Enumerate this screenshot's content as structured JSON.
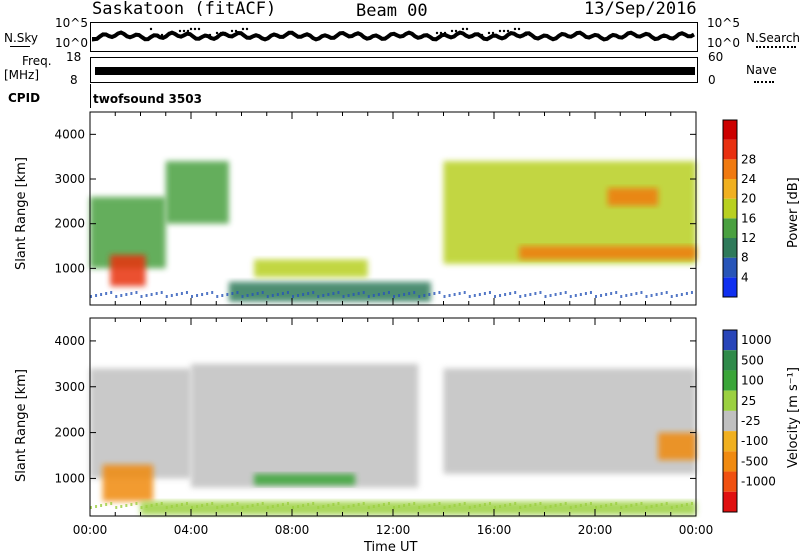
{
  "header": {
    "radar": "Saskatoon (fitACF)",
    "beam": "Beam 00",
    "date": "13/Sep/2016"
  },
  "aux": {
    "nsky_label": "N.Sky",
    "nsky_ticks": [
      "10^5",
      "10^0"
    ],
    "nsearch_label": "N.Search",
    "nsearch_ticks": [
      "10^5",
      "10^0"
    ],
    "freq_label_1": "Freq.",
    "freq_label_2": "[MHz]",
    "freq_ticks": [
      "18",
      "8"
    ],
    "nave_label": "Nave",
    "nave_ticks": [
      "60",
      "0"
    ],
    "cpid_label": "CPID",
    "cpid_value": "twofsound 3503"
  },
  "axes": {
    "xlabel": "Time UT",
    "xticks": [
      "00:00",
      "04:00",
      "08:00",
      "12:00",
      "16:00",
      "20:00",
      "00:00"
    ],
    "ylabel": "Slant Range [km]",
    "yticks": [
      "1000",
      "2000",
      "3000",
      "4000"
    ]
  },
  "colorbars": {
    "power": {
      "label": "Power [dB]",
      "ticks": [
        "4",
        "8",
        "12",
        "16",
        "20",
        "24",
        "28"
      ],
      "colors": [
        "#1030f0",
        "#2855b8",
        "#2f7a5a",
        "#4aa040",
        "#b8d020",
        "#f0b020",
        "#f07a10",
        "#e83010",
        "#cc0000"
      ]
    },
    "velocity": {
      "label": "Velocity [m s⁻¹]",
      "ticks": [
        "1000",
        "500",
        "100",
        "25",
        "-25",
        "-100",
        "-500",
        "-1000"
      ],
      "colors": [
        "#2845b8",
        "#2f8a4a",
        "#3aa538",
        "#9bd040",
        "#c0c0c0",
        "#f0b020",
        "#f08a10",
        "#f05010",
        "#e01010"
      ]
    }
  },
  "chart_data": [
    {
      "type": "heatmap",
      "title": "Power",
      "xlabel": "Time UT",
      "ylabel": "Slant Range [km]",
      "xlim": [
        "00:00",
        "24:00"
      ],
      "ylim": [
        180,
        4500
      ],
      "colorbar": "Power [dB]",
      "colorbar_range": [
        0,
        30
      ],
      "series": [
        {
          "time_start": 0.0,
          "time_end": 3.0,
          "range_km_from": 1000,
          "range_km_to": 2600,
          "value_db": 12
        },
        {
          "time_start": 0.8,
          "time_end": 2.2,
          "range_km_from": 600,
          "range_km_to": 1300,
          "value_db": 26
        },
        {
          "time_start": 3.0,
          "time_end": 5.5,
          "range_km_from": 2000,
          "range_km_to": 3400,
          "value_db": 10
        },
        {
          "time_start": 5.5,
          "time_end": 13.5,
          "range_km_from": 250,
          "range_km_to": 700,
          "value_db": 8
        },
        {
          "time_start": 6.5,
          "time_end": 11.0,
          "range_km_from": 800,
          "range_km_to": 1200,
          "value_db": 14
        },
        {
          "time_start": 14.0,
          "time_end": 24.0,
          "range_km_from": 1100,
          "range_km_to": 3400,
          "value_db": 14
        },
        {
          "time_start": 17.0,
          "time_end": 24.0,
          "range_km_from": 1200,
          "range_km_to": 1500,
          "value_db": 22
        },
        {
          "time_start": 20.5,
          "time_end": 22.5,
          "range_km_from": 2400,
          "range_km_to": 2800,
          "value_db": 20
        }
      ]
    },
    {
      "type": "heatmap",
      "title": "Velocity",
      "xlabel": "Time UT",
      "ylabel": "Slant Range [km]",
      "xlim": [
        "00:00",
        "24:00"
      ],
      "ylim": [
        180,
        4500
      ],
      "colorbar": "Velocity [m s⁻¹]",
      "colorbar_range": [
        -1000,
        1000
      ],
      "series": [
        {
          "time_start": 0.0,
          "time_end": 4.0,
          "range_km_from": 1000,
          "range_km_to": 3400,
          "value_ms": 0
        },
        {
          "time_start": 0.5,
          "time_end": 2.5,
          "range_km_from": 500,
          "range_km_to": 1300,
          "value_ms": -300
        },
        {
          "time_start": 4.0,
          "time_end": 13.0,
          "range_km_from": 800,
          "range_km_to": 3500,
          "value_ms": 0
        },
        {
          "time_start": 6.5,
          "time_end": 10.5,
          "range_km_from": 850,
          "range_km_to": 1100,
          "value_ms": 80
        },
        {
          "time_start": 2.0,
          "time_end": 24.0,
          "range_km_from": 200,
          "range_km_to": 500,
          "value_ms": 60
        },
        {
          "time_start": 14.0,
          "time_end": 24.0,
          "range_km_from": 1100,
          "range_km_to": 3400,
          "value_ms": 0
        },
        {
          "time_start": 22.5,
          "time_end": 24.0,
          "range_km_from": 1400,
          "range_km_to": 2000,
          "value_ms": -500
        }
      ]
    }
  ]
}
